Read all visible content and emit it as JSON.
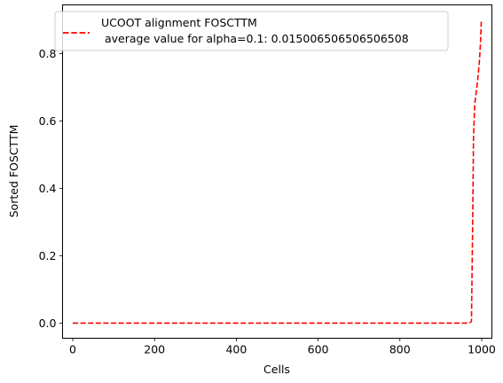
{
  "chart_data": {
    "type": "line",
    "title": "",
    "xlabel": "Cells",
    "ylabel": "Sorted FOSCTTM",
    "xlim": [
      -25,
      1025
    ],
    "ylim": [
      -0.045,
      0.945
    ],
    "x_ticks": [
      0,
      200,
      400,
      600,
      800,
      1000
    ],
    "y_ticks": [
      0.0,
      0.2,
      0.4,
      0.6,
      0.8
    ],
    "x_tick_labels": [
      "0",
      "200",
      "400",
      "600",
      "800",
      "1000"
    ],
    "y_tick_labels": [
      "0.0",
      "0.2",
      "0.4",
      "0.6",
      "0.8"
    ],
    "grid": false,
    "legend_position": "upper-left",
    "series": [
      {
        "name": "UCOOT alignment FOSCTTM\n average value for alpha=0.1: 0.015006506506506508",
        "color": "#ff0000",
        "line_style": "dashed",
        "x": [
          0,
          970,
          975,
          978,
          980,
          983,
          986,
          990,
          994,
          997,
          999
        ],
        "y": [
          0.0,
          0.0,
          0.005,
          0.3,
          0.55,
          0.65,
          0.68,
          0.72,
          0.77,
          0.83,
          0.895
        ]
      }
    ]
  }
}
